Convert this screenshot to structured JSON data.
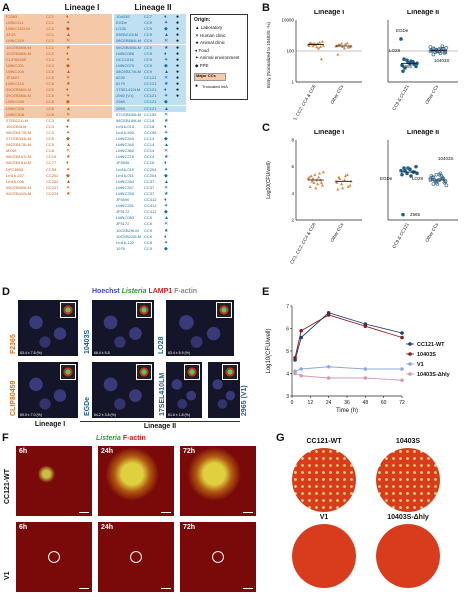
{
  "panels": {
    "A": "A",
    "B": "B",
    "C": "C",
    "D": "D",
    "E": "E",
    "F": "F",
    "G": "G"
  },
  "panelA": {
    "lineage_I_title": "Lineage I",
    "lineage_II_title": "Lineage II",
    "lineage_I_rows": [
      [
        "F2365",
        "CC1"
      ],
      [
        "LMNC411",
        "CC1"
      ],
      [
        "LMNC151LM",
        "CC1"
      ],
      [
        "AF45",
        "CC1"
      ],
      [
        "LMNC329",
        "CC1"
      ],
      [
        "10CEB550LM",
        "CC1"
      ],
      [
        "10CEB589LM",
        "CC2"
      ],
      [
        "CLIP80459",
        "CC4"
      ],
      [
        "LMNC201",
        "CC4"
      ],
      [
        "LMNC200",
        "CC6"
      ],
      [
        "JF4807",
        "CC6"
      ],
      [
        "LMNC415",
        "CC6"
      ],
      [
        "09CEB560LM",
        "CC6"
      ],
      [
        "09CEB566LM",
        "CC6"
      ],
      [
        "LMNC096",
        "CC6"
      ],
      [
        "LMNC326",
        "CC6"
      ],
      [
        "LMNC308",
        "CC6"
      ],
      [
        "07EB221LM",
        "CC3"
      ],
      [
        "10CEB3LM",
        "CC3"
      ],
      [
        "08CEB179LM",
        "CC3"
      ],
      [
        "07CEB334LM",
        "CC5"
      ],
      [
        "08CEB178LM",
        "CC5"
      ],
      [
        "MX06",
        "CC8"
      ],
      [
        "08CEB167LM",
        "CC19"
      ],
      [
        "08CEB181LM",
        "CC77"
      ],
      [
        "DPC6808",
        "CC59"
      ],
      [
        "Lm16-207",
        "CC202"
      ],
      [
        "Lm16-006",
        "CC202"
      ],
      [
        "09CEB505LM",
        "CC217"
      ],
      [
        "09CEB410LM",
        "CC224"
      ]
    ],
    "lineage_II_rows": [
      [
        "10403S",
        "CC7"
      ],
      [
        "EGDe",
        "CC9"
      ],
      [
        "LO28",
        "CC9"
      ],
      [
        "03EB210LM",
        "CC9"
      ],
      [
        "08CEB584LM",
        "CC9"
      ],
      [
        "06CEB406LM",
        "CC9"
      ],
      [
        "LMNC088",
        "CC9"
      ],
      [
        "UCCL016",
        "CC9"
      ],
      [
        "LMNC079",
        "CC9"
      ],
      [
        "08CEB174LM",
        "CC9"
      ],
      [
        "6230",
        "CC121"
      ],
      [
        "6179",
        "CC121"
      ],
      [
        "17SEL410LM",
        "CC121"
      ],
      [
        "2960 (V1)",
        "CC121"
      ],
      [
        "2969",
        "CC121"
      ],
      [
        "2963",
        "CC121"
      ],
      [
        "07CEB539LM",
        "CC155"
      ],
      [
        "08CEB189LM",
        "CC18"
      ],
      [
        "Lm16-013",
        "CC18"
      ],
      [
        "Lm16-500",
        "CC155"
      ],
      [
        "LMNC344",
        "CC14"
      ],
      [
        "LMNC340",
        "CC14"
      ],
      [
        "LMNC362",
        "CC14"
      ],
      [
        "LMNC276",
        "CC14"
      ],
      [
        "JF5536",
        "CC16"
      ],
      [
        "Lm16-019",
        "CC204"
      ],
      [
        "Lm16-011",
        "CC204"
      ],
      [
        "LMNC264",
        "CC37"
      ],
      [
        "LMNC347",
        "CC37"
      ],
      [
        "LMNC255",
        "CC37"
      ],
      [
        "JF5590",
        "CC412"
      ],
      [
        "LMNC251",
        "CC412"
      ],
      [
        "JF5172",
        "CC412"
      ],
      [
        "LMNC083",
        "CC9"
      ],
      [
        "JF5172",
        "CC9"
      ],
      [
        "10CEB29LM",
        "CC9"
      ],
      [
        "10CEB220LM",
        "CC9"
      ],
      [
        "Lm16-132",
        "CC9"
      ],
      [
        "1976",
        "CC9"
      ]
    ],
    "legend": {
      "title": "Origin:",
      "items": [
        "Laboratory",
        "Human clinic",
        "Animal clinic",
        "Food",
        "Animal environment",
        "FPE"
      ],
      "major": "Major CCs",
      "truncated": "Truncated InlA"
    }
  },
  "panelB": {
    "lineage_I": "Lineage I",
    "lineage_II": "Lineage II",
    "ylabel": "Entry (Normalized to 10403S -%)",
    "xticks_I": [
      "CC1, CC2, CC4 & CC6",
      "Other CCs"
    ],
    "xticks_II": [
      "CC9 & CC121",
      "Other CCs"
    ],
    "yticks": [
      "10000",
      "100",
      "1"
    ],
    "annotations": [
      "EGDe",
      "LO28",
      "2965",
      "10403S"
    ]
  },
  "panelC": {
    "lineage_I": "Lineage I",
    "lineage_II": "Lineage II",
    "ylabel": "Log10(CFU/well)",
    "xticks_I": [
      "CC1, CC2, CC4 & CC6",
      "Other CCs"
    ],
    "xticks_II": [
      "CC9 & CC121",
      "Other CCs"
    ],
    "yticks": [
      "8",
      "6",
      "4",
      "2"
    ],
    "annotations": [
      "EGDe",
      "LO28",
      "10403S",
      "2965"
    ]
  },
  "panelD": {
    "header_hoechst": "Hoechst",
    "header_listeria": "Listeria",
    "header_lamp1": "LAMP1",
    "header_factin": "F-actin",
    "images": [
      {
        "strain": "F2365",
        "value": "63.4 ± 7.8 (%)"
      },
      {
        "strain": "10403S",
        "value": "66.4 ± 5.8"
      },
      {
        "strain": "LO28",
        "value": "63.4 ± 5.9 (%)"
      },
      {
        "strain": "CLIP80459",
        "value": "69.9 ± 7.0 (%)"
      },
      {
        "strain": "EGDe",
        "value": "64.2 ± 3.8 (%)"
      },
      {
        "strain": "17SEL410LM",
        "value": "61.6 ± 1.8 (%)"
      },
      {
        "strain": "2965 (V1)",
        "value": ""
      }
    ],
    "lineage_I": "Lineage I",
    "lineage_II": "Lineage II"
  },
  "panelF": {
    "header_listeria": "Listeria",
    "header_factin": "F-actin",
    "rows": [
      "CC121-WT",
      "V1"
    ],
    "times": [
      "6h",
      "24h",
      "72h"
    ]
  },
  "panelG": {
    "labels": [
      "CC121-WT",
      "10403S",
      "V1",
      "10403S-Δhly"
    ]
  },
  "colors": {
    "lineage_I_bg": "#f5c9a8",
    "lineage_I_text": "#c8601e",
    "lineage_II_bg": "#bfe0f2",
    "lineage_II_text": "#1a6f9c",
    "dark_blue": "#1f3b7a",
    "dark_red": "#8b1a1a",
    "light_blue": "#8fa8dd",
    "pink": "#d59aa8"
  },
  "chart_data": [
    {
      "type": "scatter",
      "panel": "B",
      "title": "Lineage I",
      "ylabel": "Entry (Normalized to 10403S -%)",
      "yscale": "log",
      "ylim": [
        1,
        10000
      ],
      "categories": [
        "CC1, CC2, CC4 & CC6",
        "Other CCs"
      ],
      "series": [
        {
          "values": [
            250,
            300,
            320,
            180,
            350,
            400,
            220,
            280,
            260,
            310,
            190,
            230,
            340,
            210,
            270,
            150,
            30
          ]
        },
        {
          "values": [
            200,
            260,
            300,
            150,
            320,
            180,
            220,
            240,
            190,
            280,
            170,
            210,
            60
          ]
        }
      ]
    },
    {
      "type": "scatter",
      "panel": "B",
      "title": "Lineage II",
      "ylabel": "Entry (Normalized to 10403S -%)",
      "yscale": "log",
      "ylim": [
        1,
        10000
      ],
      "categories": [
        "CC9 & CC121",
        "Other CCs"
      ],
      "series": [
        {
          "values": [
            600,
            30,
            25,
            15,
            20,
            10,
            12,
            8,
            18,
            22,
            14,
            16,
            5
          ]
        },
        {
          "values": [
            100,
            150,
            120,
            90,
            200,
            80,
            110,
            130,
            95,
            70,
            140,
            160,
            105,
            85,
            125,
            115,
            75,
            180,
            60,
            100,
            135,
            145,
            100
          ]
        }
      ]
    },
    {
      "type": "scatter",
      "panel": "C",
      "title": "Lineage I",
      "ylabel": "Log10(CFU/well)",
      "ylim": [
        2,
        8
      ],
      "categories": [
        "CC1, CC2, CC4 & CC6",
        "Other CCs"
      ],
      "series": [
        {
          "values": [
            5.1,
            5.3,
            4.8,
            5.0,
            5.5,
            4.6,
            5.2,
            4.9,
            5.4,
            4.7,
            5.0,
            5.6,
            4.5,
            5.1,
            4.4,
            5.2,
            4.8
          ]
        },
        {
          "values": [
            4.9,
            5.2,
            4.7,
            5.0,
            5.4,
            4.6,
            4.8,
            5.1,
            4.4,
            5.3,
            4.5,
            4.9,
            4.3
          ]
        }
      ]
    },
    {
      "type": "scatter",
      "panel": "C",
      "title": "Lineage II",
      "ylabel": "Log10(CFU/well)",
      "ylim": [
        2,
        8
      ],
      "categories": [
        "CC9 & CC121",
        "Other CCs"
      ],
      "series": [
        {
          "values": [
            5.7,
            5.9,
            5.5,
            5.8,
            5.6,
            6.0,
            5.4,
            5.7,
            5.9,
            5.3,
            5.6,
            5.5,
            2.4
          ]
        },
        {
          "values": [
            5.0,
            5.2,
            4.8,
            5.4,
            5.1,
            4.9,
            5.3,
            5.0,
            4.7,
            5.5,
            5.1,
            4.6,
            5.2,
            4.9,
            5.0,
            5.3,
            4.8,
            5.1,
            4.7,
            5.4,
            5.0,
            5.2,
            4.9
          ]
        }
      ]
    },
    {
      "type": "line",
      "panel": "E",
      "ylabel": "Log10(CFU/well)",
      "xlabel": "Time (h)",
      "xticks": [
        0,
        12,
        24,
        36,
        48,
        60,
        72
      ],
      "yticks": [
        3,
        4,
        5,
        6,
        7
      ],
      "ylim": [
        3,
        7
      ],
      "xlim": [
        0,
        72
      ],
      "series": [
        {
          "name": "CC121-WT",
          "x": [
            2,
            6,
            24,
            48,
            72
          ],
          "y": [
            4.6,
            5.6,
            6.7,
            6.2,
            5.8
          ],
          "color": "#1f3b7a"
        },
        {
          "name": "10403S",
          "x": [
            2,
            6,
            24,
            48,
            72
          ],
          "y": [
            4.7,
            5.9,
            6.6,
            6.1,
            5.6
          ],
          "color": "#8b1a1a"
        },
        {
          "name": "V1",
          "x": [
            2,
            6,
            24,
            48,
            72
          ],
          "y": [
            4.1,
            4.2,
            4.3,
            4.2,
            4.2
          ],
          "color": "#8fa8dd"
        },
        {
          "name": "10403S-Δhly",
          "x": [
            2,
            6,
            24,
            48,
            72
          ],
          "y": [
            4.0,
            3.9,
            3.8,
            3.8,
            3.7
          ],
          "color": "#d59aa8"
        }
      ]
    }
  ]
}
